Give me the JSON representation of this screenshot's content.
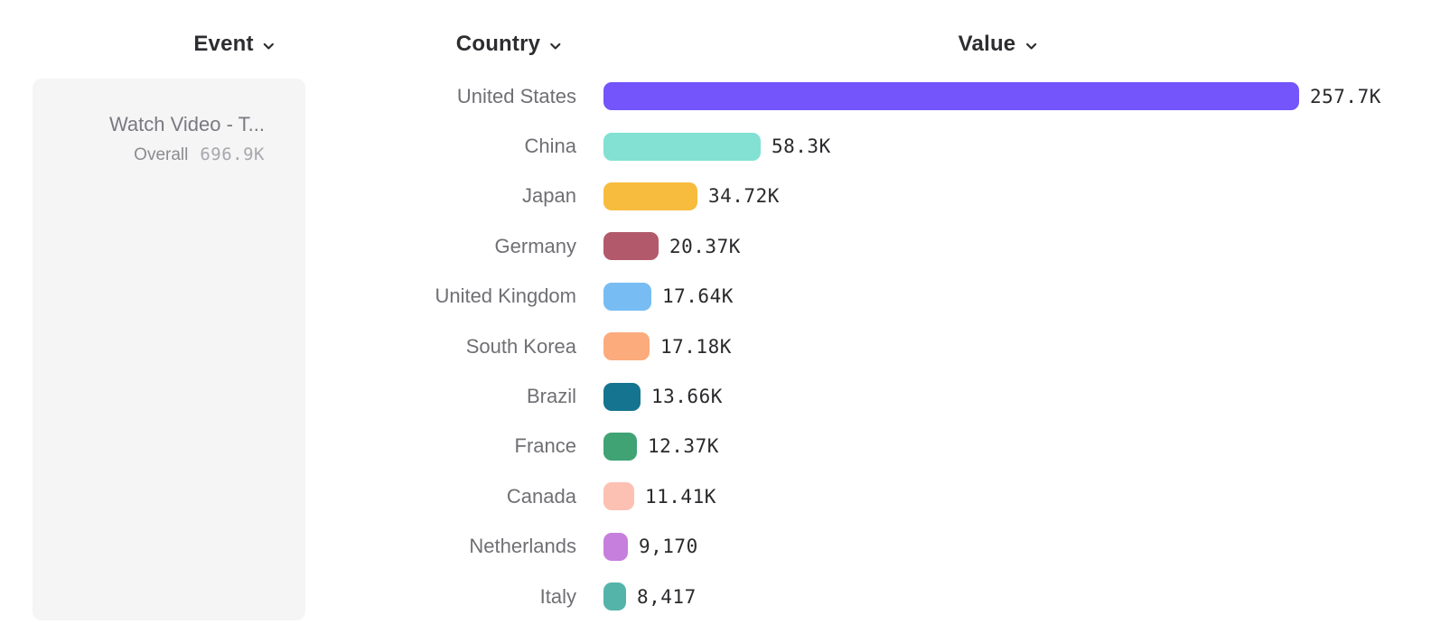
{
  "header": {
    "event_label": "Event",
    "country_label": "Country",
    "value_label": "Value"
  },
  "event_card": {
    "title": "Watch Video - T...",
    "overall_label": "Overall",
    "overall_value": "696.9K"
  },
  "chart_data": {
    "type": "bar",
    "orientation": "horizontal",
    "breakdown_column": "Country",
    "value_column": "Value",
    "categories": [
      "United States",
      "China",
      "Japan",
      "Germany",
      "United Kingdom",
      "South Korea",
      "Brazil",
      "France",
      "Canada",
      "Netherlands",
      "Italy"
    ],
    "values": [
      257700,
      58300,
      34720,
      20370,
      17640,
      17180,
      13660,
      12370,
      11410,
      9170,
      8417
    ],
    "value_labels": [
      "257.7K",
      "58.3K",
      "34.72K",
      "20.37K",
      "17.64K",
      "17.18K",
      "13.66K",
      "12.37K",
      "11.41K",
      "9,170",
      "8,417"
    ],
    "bar_colors": [
      "#7454FB",
      "#82E1D2",
      "#F7BC3D",
      "#B25A6C",
      "#77BDF4",
      "#FBAB7C",
      "#15748F",
      "#3FA374",
      "#FCC1B3",
      "#C67FDC",
      "#54B4AA"
    ],
    "xlim": [
      0,
      257700
    ],
    "grid": false,
    "legend": false
  },
  "colors": {
    "card_bg": "#f5f5f6",
    "header_text": "#2d2d31",
    "country_text": "#6f6f74",
    "value_text": "#2a2a2d",
    "card_title_text": "#797980",
    "overall_label_text": "#8b8b90",
    "overall_value_text": "#a7a7ac"
  },
  "icons": {
    "chevron_down": "v"
  }
}
